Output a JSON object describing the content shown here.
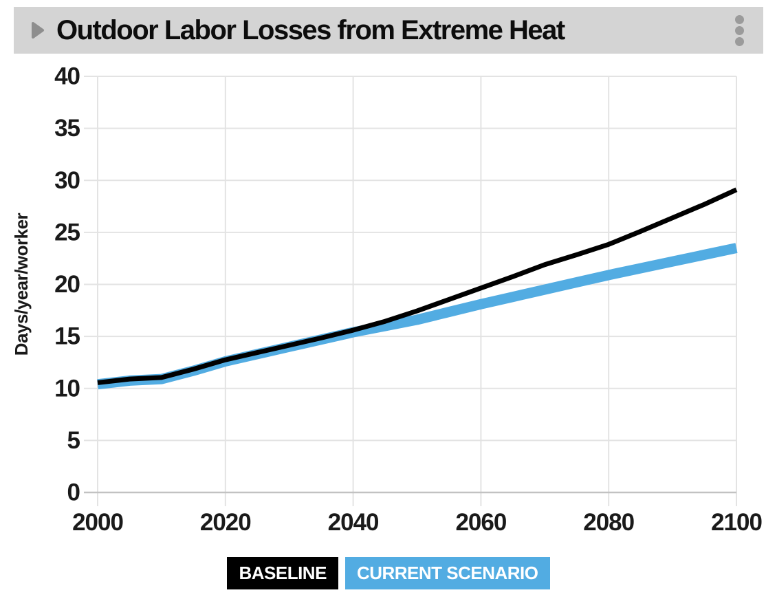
{
  "header": {
    "title": "Outdoor Labor Losses from Extreme Heat",
    "collapse_icon": "triangle-right-icon",
    "menu_icon": "kebab-menu-icon"
  },
  "chart_data": {
    "type": "line",
    "title": "Outdoor Labor Losses from Extreme Heat",
    "xlabel": "",
    "ylabel": "Days/year/worker",
    "xlim": [
      2000,
      2100
    ],
    "ylim": [
      0,
      40
    ],
    "xticks": [
      2000,
      2020,
      2040,
      2060,
      2080,
      2100
    ],
    "yticks": [
      0,
      5,
      10,
      15,
      20,
      25,
      30,
      35,
      40
    ],
    "grid": true,
    "legend_position": "bottom",
    "x": [
      2000,
      2005,
      2010,
      2015,
      2020,
      2025,
      2030,
      2035,
      2040,
      2045,
      2050,
      2055,
      2060,
      2065,
      2070,
      2075,
      2080,
      2085,
      2090,
      2095,
      2100
    ],
    "series": [
      {
        "name": "CURRENT SCENARIO",
        "color": "#52ace2",
        "stroke_width": 15,
        "values": [
          10.4,
          10.75,
          10.9,
          11.7,
          12.6,
          13.3,
          14.0,
          14.7,
          15.4,
          16.0,
          16.6,
          17.35,
          18.1,
          18.8,
          19.5,
          20.2,
          20.9,
          21.55,
          22.2,
          22.85,
          23.5
        ]
      },
      {
        "name": "BASELINE",
        "color": "#000000",
        "stroke_width": 7,
        "values": [
          10.55,
          10.9,
          11.05,
          11.85,
          12.75,
          13.45,
          14.15,
          14.85,
          15.6,
          16.45,
          17.45,
          18.55,
          19.65,
          20.75,
          21.9,
          22.85,
          23.85,
          25.1,
          26.4,
          27.7,
          29.1
        ]
      }
    ]
  },
  "legend": {
    "items": [
      {
        "label": "BASELINE",
        "color": "#000000",
        "text_color": "#ffffff"
      },
      {
        "label": "CURRENT SCENARIO",
        "color": "#52ace2",
        "text_color": "#ffffff"
      }
    ]
  },
  "colors": {
    "header_bg": "#d4d4d4",
    "baseline_black": "#000000",
    "scenario_blue": "#52ace2",
    "gridline": "#e3e3e3",
    "axis_line": "#c2c2c2",
    "collapse_icon_gray": "#8e8e8e",
    "menu_dots_gray": "#9b9b9b",
    "tick_text": "#1a1a1a"
  }
}
